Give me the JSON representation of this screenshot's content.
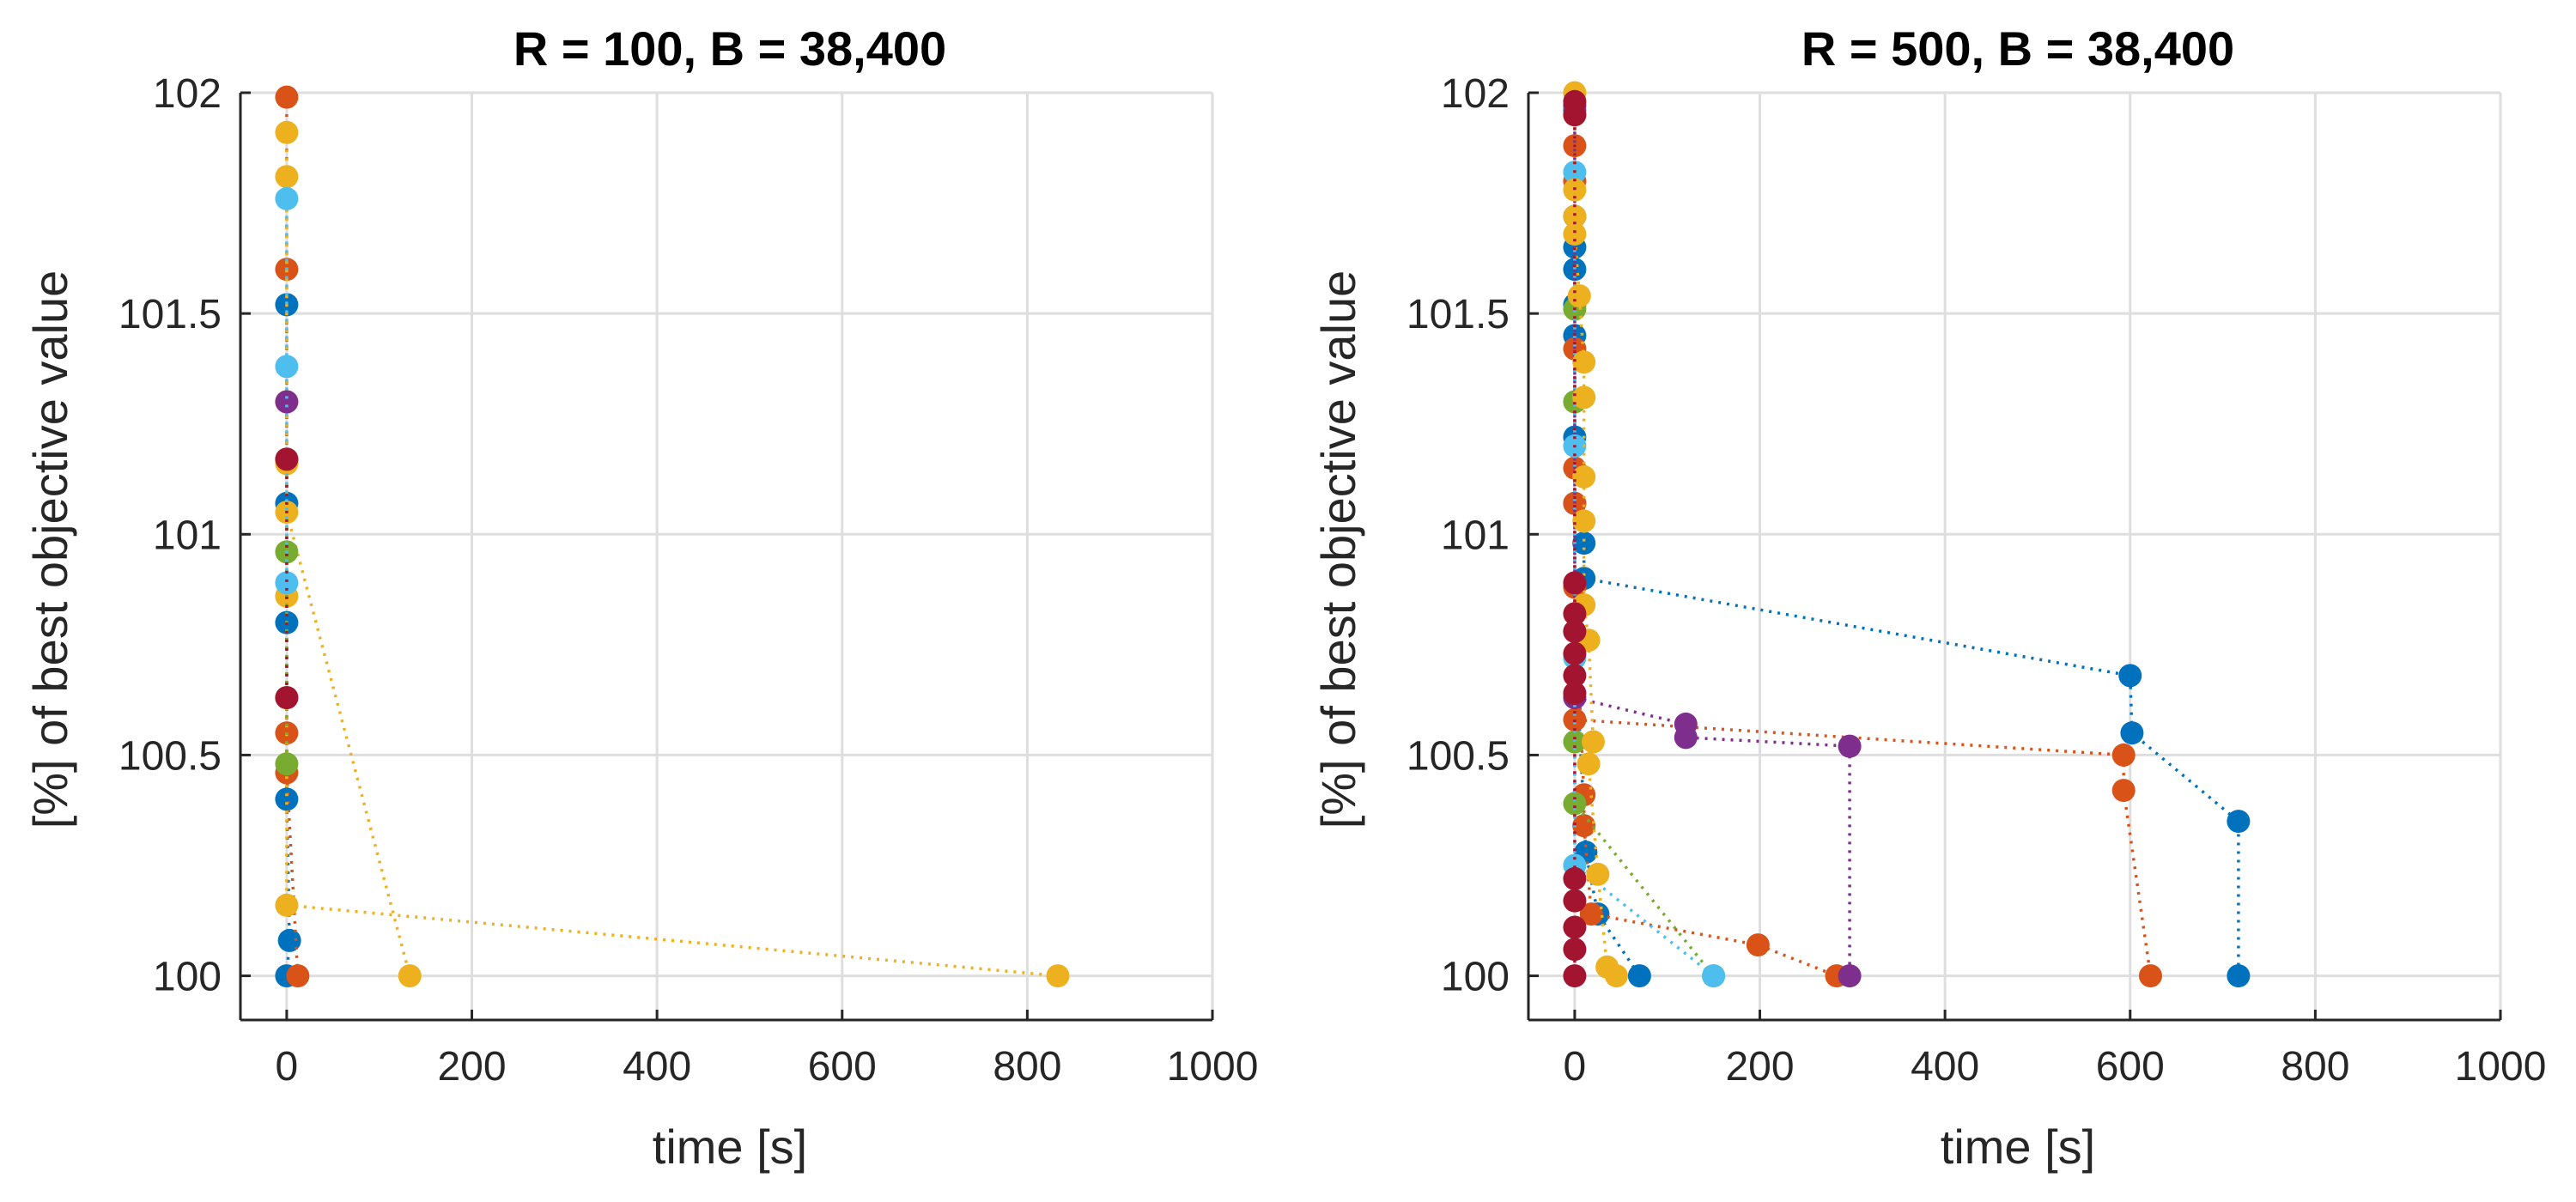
{
  "colors": {
    "blue": "#0072bd",
    "orange": "#d95319",
    "yellow": "#edb120",
    "purple": "#7e2f8e",
    "green": "#77ac30",
    "cyan": "#4dbeee",
    "maroon": "#a2142f"
  },
  "chart_data": [
    {
      "type": "scatter",
      "title": "R = 100, B = 38,400",
      "xlabel": "time [s]",
      "ylabel": "[%] of best objective value",
      "xlim": [
        -50,
        1000
      ],
      "ylim": [
        99.9,
        102
      ],
      "xticks": [
        0,
        200,
        400,
        600,
        800,
        1000
      ],
      "xtick_labels": [
        "0",
        "200",
        "400",
        "600",
        "800",
        "1000"
      ],
      "yticks": [
        100,
        100.5,
        101,
        101.5,
        102
      ],
      "ytick_labels": [
        "100",
        "100.5",
        "101",
        "101.5",
        "102"
      ],
      "grid": true,
      "series": [
        {
          "name": "blue",
          "color": "blue",
          "points": [
            [
              0,
              101.52
            ],
            [
              0,
              101.07
            ],
            [
              0,
              100.8
            ],
            [
              0,
              100.4
            ],
            [
              3,
              100.08
            ],
            [
              0,
              100.0
            ]
          ]
        },
        {
          "name": "orange",
          "color": "orange",
          "points": [
            [
              0,
              101.99
            ],
            [
              0,
              101.6
            ],
            [
              0,
              101.17
            ],
            [
              0,
              100.63
            ],
            [
              0,
              100.55
            ],
            [
              0,
              100.46
            ],
            [
              12,
              100.0
            ]
          ]
        },
        {
          "name": "yellow",
          "color": "yellow",
          "points": [
            [
              0,
              101.91
            ],
            [
              0,
              101.81
            ],
            [
              0,
              101.3
            ],
            [
              0,
              101.16
            ],
            [
              0,
              100.86
            ],
            [
              0,
              100.16
            ],
            [
              833,
              100.0
            ]
          ]
        },
        {
          "name": "yellow-2",
          "color": "yellow",
          "points": [
            [
              0,
              101.05
            ],
            [
              133,
              100.0
            ]
          ]
        },
        {
          "name": "purple",
          "color": "purple",
          "points": [
            [
              0,
              101.3
            ]
          ]
        },
        {
          "name": "green",
          "color": "green",
          "points": [
            [
              0,
              100.96
            ],
            [
              0,
              100.48
            ]
          ]
        },
        {
          "name": "cyan",
          "color": "cyan",
          "points": [
            [
              0,
              101.76
            ],
            [
              0,
              101.38
            ],
            [
              0,
              100.89
            ]
          ]
        },
        {
          "name": "maroon",
          "color": "maroon",
          "points": [
            [
              0,
              101.17
            ],
            [
              0,
              100.63
            ]
          ]
        }
      ]
    },
    {
      "type": "scatter",
      "title": "R = 500, B = 38,400",
      "xlabel": "time [s]",
      "ylabel": "[%] of best objective value",
      "xlim": [
        -50,
        1000
      ],
      "ylim": [
        99.9,
        102
      ],
      "xticks": [
        0,
        200,
        400,
        600,
        800,
        1000
      ],
      "xtick_labels": [
        "0",
        "200",
        "400",
        "600",
        "800",
        "1000"
      ],
      "yticks": [
        100,
        100.5,
        101,
        101.5,
        102
      ],
      "ytick_labels": [
        "100",
        "100.5",
        "101",
        "101.5",
        "102"
      ],
      "grid": true,
      "series": [
        {
          "name": "blue-a",
          "color": "blue",
          "points": [
            [
              10,
              100.98
            ],
            [
              10,
              100.9
            ],
            [
              600,
              100.68
            ],
            [
              602,
              100.55
            ],
            [
              717,
              100.35
            ],
            [
              717,
              100.0
            ]
          ]
        },
        {
          "name": "blue-b",
          "color": "blue",
          "points": [
            [
              0,
              101.96
            ],
            [
              0,
              101.72
            ],
            [
              0,
              101.65
            ],
            [
              0,
              101.6
            ],
            [
              0,
              101.52
            ],
            [
              0,
              101.45
            ],
            [
              0,
              101.22
            ],
            [
              0,
              101.07
            ],
            [
              0,
              100.78
            ],
            [
              12,
              100.28
            ],
            [
              25,
              100.14
            ],
            [
              70,
              100.0
            ]
          ]
        },
        {
          "name": "orange-a",
          "color": "orange",
          "points": [
            [
              0,
              101.88
            ],
            [
              0,
              101.8
            ],
            [
              0,
              101.42
            ],
            [
              0,
              101.15
            ],
            [
              0,
              101.07
            ],
            [
              0,
              100.58
            ],
            [
              593,
              100.5
            ],
            [
              593,
              100.42
            ],
            [
              622,
              100.0
            ]
          ]
        },
        {
          "name": "orange-b",
          "color": "orange",
          "points": [
            [
              0,
              100.88
            ],
            [
              10,
              100.41
            ],
            [
              10,
              100.34
            ],
            [
              18,
              100.14
            ],
            [
              198,
              100.07
            ],
            [
              283,
              100.0
            ]
          ]
        },
        {
          "name": "purple",
          "color": "purple",
          "points": [
            [
              0,
              101.97
            ],
            [
              0,
              100.63
            ],
            [
              120,
              100.57
            ],
            [
              120,
              100.54
            ],
            [
              297,
              100.52
            ],
            [
              297,
              100.0
            ]
          ]
        },
        {
          "name": "green",
          "color": "green",
          "points": [
            [
              0,
              101.51
            ],
            [
              0,
              101.3
            ],
            [
              0,
              100.53
            ],
            [
              0,
              100.39
            ],
            [
              150,
              100.0
            ]
          ]
        },
        {
          "name": "cyan",
          "color": "cyan",
          "points": [
            [
              0,
              101.82
            ],
            [
              0,
              101.72
            ],
            [
              0,
              101.2
            ],
            [
              0,
              100.72
            ],
            [
              0,
              100.25
            ],
            [
              150,
              100.0
            ]
          ]
        },
        {
          "name": "yellow",
          "color": "yellow",
          "points": [
            [
              0,
              102.0
            ],
            [
              0,
              101.95
            ],
            [
              0,
              101.78
            ],
            [
              0,
              101.72
            ],
            [
              0,
              101.68
            ],
            [
              5,
              101.54
            ],
            [
              10,
              101.39
            ],
            [
              10,
              101.31
            ],
            [
              10,
              101.13
            ],
            [
              10,
              101.03
            ],
            [
              10,
              100.84
            ],
            [
              15,
              100.76
            ],
            [
              20,
              100.53
            ],
            [
              15,
              100.48
            ],
            [
              25,
              100.23
            ],
            [
              35,
              100.02
            ],
            [
              45,
              100.0
            ]
          ]
        },
        {
          "name": "maroon",
          "color": "maroon",
          "points": [
            [
              0,
              101.98
            ],
            [
              0,
              101.95
            ],
            [
              0,
              100.89
            ],
            [
              0,
              100.82
            ],
            [
              0,
              100.78
            ],
            [
              0,
              100.73
            ],
            [
              0,
              100.68
            ],
            [
              0,
              100.64
            ],
            [
              0,
              100.22
            ],
            [
              0,
              100.17
            ],
            [
              0,
              100.11
            ],
            [
              0,
              100.06
            ],
            [
              0,
              100.0
            ]
          ]
        }
      ]
    }
  ]
}
